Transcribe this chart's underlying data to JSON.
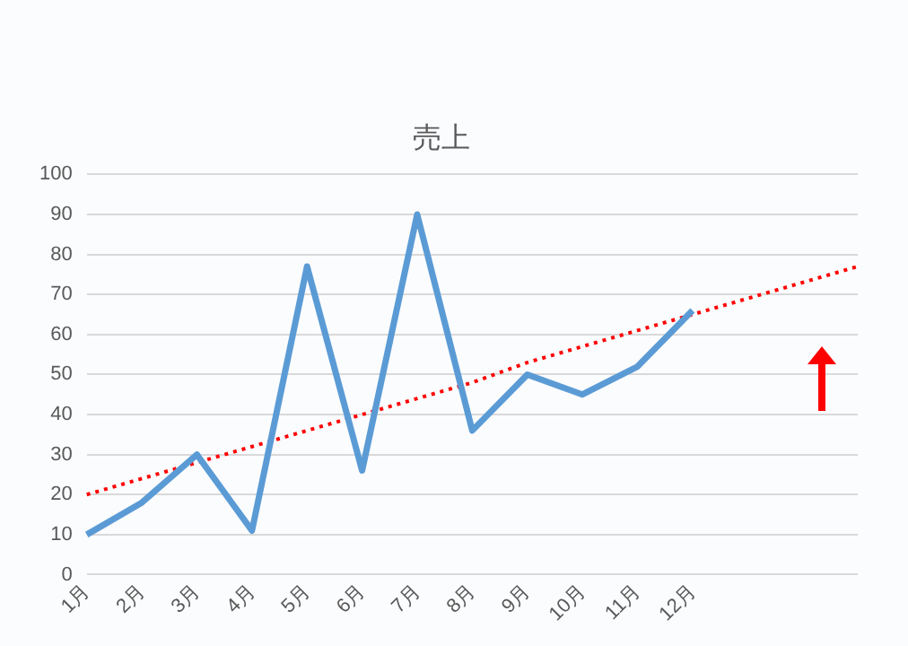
{
  "chart_data": {
    "type": "line",
    "title": "売上",
    "categories": [
      "1月",
      "2月",
      "3月",
      "4月",
      "5月",
      "6月",
      "7月",
      "8月",
      "9月",
      "10月",
      "11月",
      "12月",
      null,
      null,
      null
    ],
    "series": [
      {
        "color": "#5b9bd5",
        "values": [
          10,
          18,
          30,
          11,
          77,
          26,
          90,
          36,
          50,
          45,
          52,
          66,
          null,
          null,
          null
        ]
      },
      {
        "type": "line",
        "color": "#ff0000",
        "line_style": "dotted",
        "values": [
          20,
          24,
          28,
          32,
          36,
          40,
          44,
          48,
          53,
          57,
          61,
          65,
          69,
          73,
          77
        ]
      }
    ],
    "ylim": [
      0,
      100
    ],
    "yticks": [
      0,
      10,
      20,
      30,
      40,
      50,
      60,
      70,
      80,
      90,
      100
    ],
    "grid": "y",
    "legend": false,
    "marker": "none"
  }
}
